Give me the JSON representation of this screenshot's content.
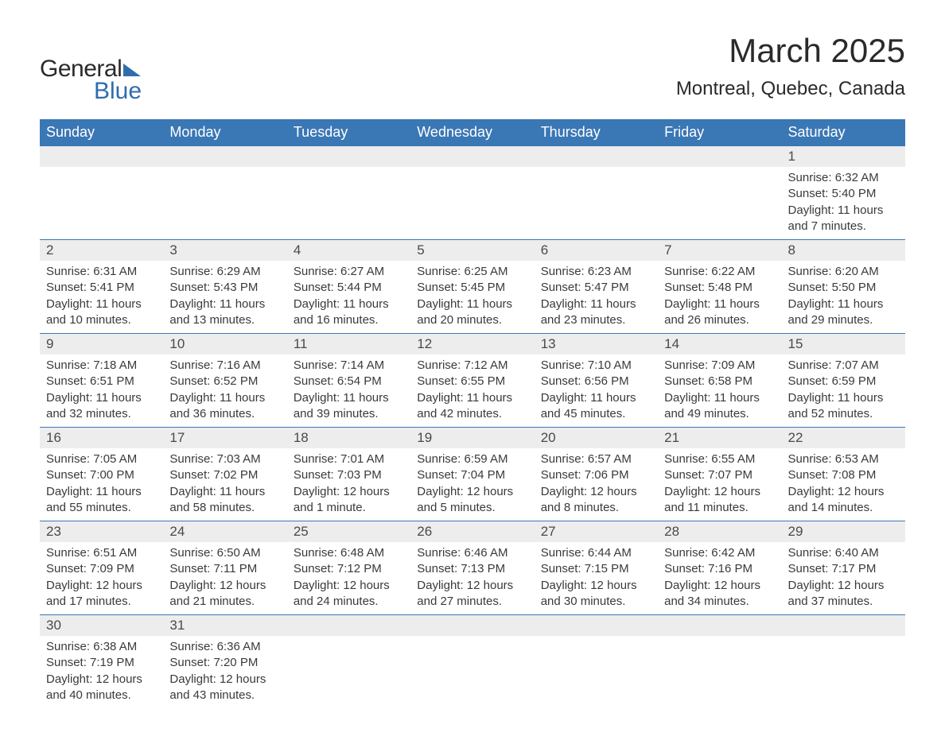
{
  "logo": {
    "word1": "General",
    "word2": "Blue"
  },
  "title": {
    "month": "March 2025",
    "location": "Montreal, Quebec, Canada"
  },
  "calendar": {
    "header_bg": "#3a77b5",
    "header_fg": "#ffffff",
    "daynum_bg": "#ededed",
    "row_border": "#3a77b5",
    "text_color": "#3a3a3a",
    "font_family": "Arial",
    "title_fontsize": 42,
    "location_fontsize": 24,
    "header_fontsize": 18,
    "daynum_fontsize": 17,
    "body_fontsize": 15,
    "columns": [
      "Sunday",
      "Monday",
      "Tuesday",
      "Wednesday",
      "Thursday",
      "Friday",
      "Saturday"
    ],
    "weeks": [
      [
        null,
        null,
        null,
        null,
        null,
        null,
        {
          "n": "1",
          "sr": "Sunrise: 6:32 AM",
          "ss": "Sunset: 5:40 PM",
          "d1": "Daylight: 11 hours",
          "d2": "and 7 minutes."
        }
      ],
      [
        {
          "n": "2",
          "sr": "Sunrise: 6:31 AM",
          "ss": "Sunset: 5:41 PM",
          "d1": "Daylight: 11 hours",
          "d2": "and 10 minutes."
        },
        {
          "n": "3",
          "sr": "Sunrise: 6:29 AM",
          "ss": "Sunset: 5:43 PM",
          "d1": "Daylight: 11 hours",
          "d2": "and 13 minutes."
        },
        {
          "n": "4",
          "sr": "Sunrise: 6:27 AM",
          "ss": "Sunset: 5:44 PM",
          "d1": "Daylight: 11 hours",
          "d2": "and 16 minutes."
        },
        {
          "n": "5",
          "sr": "Sunrise: 6:25 AM",
          "ss": "Sunset: 5:45 PM",
          "d1": "Daylight: 11 hours",
          "d2": "and 20 minutes."
        },
        {
          "n": "6",
          "sr": "Sunrise: 6:23 AM",
          "ss": "Sunset: 5:47 PM",
          "d1": "Daylight: 11 hours",
          "d2": "and 23 minutes."
        },
        {
          "n": "7",
          "sr": "Sunrise: 6:22 AM",
          "ss": "Sunset: 5:48 PM",
          "d1": "Daylight: 11 hours",
          "d2": "and 26 minutes."
        },
        {
          "n": "8",
          "sr": "Sunrise: 6:20 AM",
          "ss": "Sunset: 5:50 PM",
          "d1": "Daylight: 11 hours",
          "d2": "and 29 minutes."
        }
      ],
      [
        {
          "n": "9",
          "sr": "Sunrise: 7:18 AM",
          "ss": "Sunset: 6:51 PM",
          "d1": "Daylight: 11 hours",
          "d2": "and 32 minutes."
        },
        {
          "n": "10",
          "sr": "Sunrise: 7:16 AM",
          "ss": "Sunset: 6:52 PM",
          "d1": "Daylight: 11 hours",
          "d2": "and 36 minutes."
        },
        {
          "n": "11",
          "sr": "Sunrise: 7:14 AM",
          "ss": "Sunset: 6:54 PM",
          "d1": "Daylight: 11 hours",
          "d2": "and 39 minutes."
        },
        {
          "n": "12",
          "sr": "Sunrise: 7:12 AM",
          "ss": "Sunset: 6:55 PM",
          "d1": "Daylight: 11 hours",
          "d2": "and 42 minutes."
        },
        {
          "n": "13",
          "sr": "Sunrise: 7:10 AM",
          "ss": "Sunset: 6:56 PM",
          "d1": "Daylight: 11 hours",
          "d2": "and 45 minutes."
        },
        {
          "n": "14",
          "sr": "Sunrise: 7:09 AM",
          "ss": "Sunset: 6:58 PM",
          "d1": "Daylight: 11 hours",
          "d2": "and 49 minutes."
        },
        {
          "n": "15",
          "sr": "Sunrise: 7:07 AM",
          "ss": "Sunset: 6:59 PM",
          "d1": "Daylight: 11 hours",
          "d2": "and 52 minutes."
        }
      ],
      [
        {
          "n": "16",
          "sr": "Sunrise: 7:05 AM",
          "ss": "Sunset: 7:00 PM",
          "d1": "Daylight: 11 hours",
          "d2": "and 55 minutes."
        },
        {
          "n": "17",
          "sr": "Sunrise: 7:03 AM",
          "ss": "Sunset: 7:02 PM",
          "d1": "Daylight: 11 hours",
          "d2": "and 58 minutes."
        },
        {
          "n": "18",
          "sr": "Sunrise: 7:01 AM",
          "ss": "Sunset: 7:03 PM",
          "d1": "Daylight: 12 hours",
          "d2": "and 1 minute."
        },
        {
          "n": "19",
          "sr": "Sunrise: 6:59 AM",
          "ss": "Sunset: 7:04 PM",
          "d1": "Daylight: 12 hours",
          "d2": "and 5 minutes."
        },
        {
          "n": "20",
          "sr": "Sunrise: 6:57 AM",
          "ss": "Sunset: 7:06 PM",
          "d1": "Daylight: 12 hours",
          "d2": "and 8 minutes."
        },
        {
          "n": "21",
          "sr": "Sunrise: 6:55 AM",
          "ss": "Sunset: 7:07 PM",
          "d1": "Daylight: 12 hours",
          "d2": "and 11 minutes."
        },
        {
          "n": "22",
          "sr": "Sunrise: 6:53 AM",
          "ss": "Sunset: 7:08 PM",
          "d1": "Daylight: 12 hours",
          "d2": "and 14 minutes."
        }
      ],
      [
        {
          "n": "23",
          "sr": "Sunrise: 6:51 AM",
          "ss": "Sunset: 7:09 PM",
          "d1": "Daylight: 12 hours",
          "d2": "and 17 minutes."
        },
        {
          "n": "24",
          "sr": "Sunrise: 6:50 AM",
          "ss": "Sunset: 7:11 PM",
          "d1": "Daylight: 12 hours",
          "d2": "and 21 minutes."
        },
        {
          "n": "25",
          "sr": "Sunrise: 6:48 AM",
          "ss": "Sunset: 7:12 PM",
          "d1": "Daylight: 12 hours",
          "d2": "and 24 minutes."
        },
        {
          "n": "26",
          "sr": "Sunrise: 6:46 AM",
          "ss": "Sunset: 7:13 PM",
          "d1": "Daylight: 12 hours",
          "d2": "and 27 minutes."
        },
        {
          "n": "27",
          "sr": "Sunrise: 6:44 AM",
          "ss": "Sunset: 7:15 PM",
          "d1": "Daylight: 12 hours",
          "d2": "and 30 minutes."
        },
        {
          "n": "28",
          "sr": "Sunrise: 6:42 AM",
          "ss": "Sunset: 7:16 PM",
          "d1": "Daylight: 12 hours",
          "d2": "and 34 minutes."
        },
        {
          "n": "29",
          "sr": "Sunrise: 6:40 AM",
          "ss": "Sunset: 7:17 PM",
          "d1": "Daylight: 12 hours",
          "d2": "and 37 minutes."
        }
      ],
      [
        {
          "n": "30",
          "sr": "Sunrise: 6:38 AM",
          "ss": "Sunset: 7:19 PM",
          "d1": "Daylight: 12 hours",
          "d2": "and 40 minutes."
        },
        {
          "n": "31",
          "sr": "Sunrise: 6:36 AM",
          "ss": "Sunset: 7:20 PM",
          "d1": "Daylight: 12 hours",
          "d2": "and 43 minutes."
        },
        null,
        null,
        null,
        null,
        null
      ]
    ]
  }
}
